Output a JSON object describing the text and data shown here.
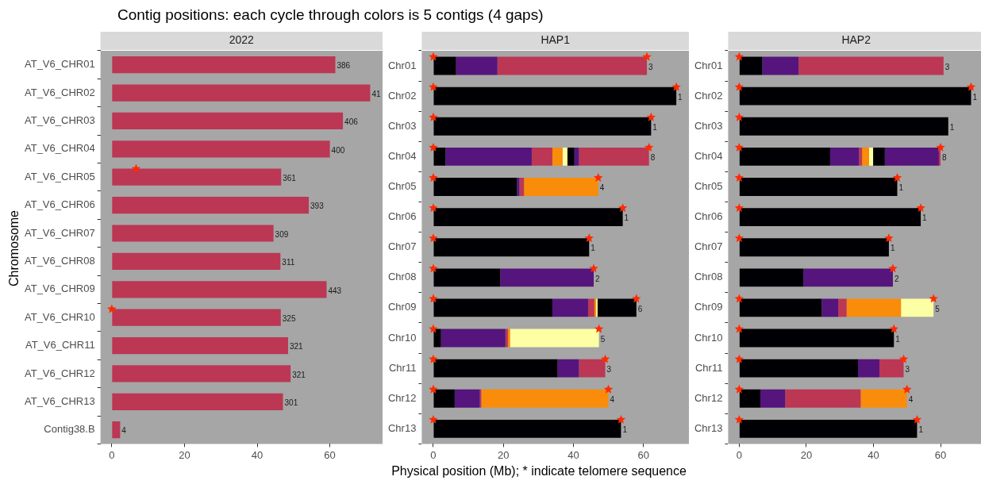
{
  "chart_data": [
    {
      "type": "bar",
      "orientation": "horizontal",
      "title": "Contig positions: each cycle through colors is 5 contigs (4 gaps)",
      "subtitle": "2022",
      "ylabel": "Chromosome",
      "categories": [
        "AT_V6_CHR01",
        "AT_V6_CHR02",
        "AT_V6_CHR03",
        "AT_V6_CHR04",
        "AT_V6_CHR05",
        "AT_V6_CHR06",
        "AT_V6_CHR07",
        "AT_V6_CHR08",
        "AT_V6_CHR09",
        "AT_V6_CHR10",
        "AT_V6_CHR11",
        "AT_V6_CHR12",
        "AT_V6_CHR13",
        "Contig38.B"
      ],
      "series": [
        {
          "color": "#bb3754",
          "values": [
            61.5,
            71.1,
            63.6,
            60.0,
            46.6,
            54.2,
            44.5,
            46.4,
            59.1,
            46.5,
            48.5,
            49.2,
            47.1,
            2.3
          ]
        },
        {
          "type": "scatter",
          "color": "#ff2a00",
          "marker": "star",
          "x": [
            "AT_V6_CHR05",
            "AT_V6_CHR10"
          ],
          "values": [
            6.7,
            0
          ]
        }
      ],
      "annotations": [
        {
          "text": "386",
          "x": 61.5,
          "y": "AT_V6_CHR01"
        },
        {
          "text": "41",
          "x": 71.1,
          "y": "AT_V6_CHR02"
        },
        {
          "text": "406",
          "x": 63.6,
          "y": "AT_V6_CHR03"
        },
        {
          "text": "400",
          "x": 60.0,
          "y": "AT_V6_CHR04"
        },
        {
          "text": "361",
          "x": 46.6,
          "y": "AT_V6_CHR05"
        },
        {
          "text": "393",
          "x": 54.2,
          "y": "AT_V6_CHR06"
        },
        {
          "text": "309",
          "x": 44.5,
          "y": "AT_V6_CHR07"
        },
        {
          "text": "311",
          "x": 46.4,
          "y": "AT_V6_CHR08"
        },
        {
          "text": "443",
          "x": 59.1,
          "y": "AT_V6_CHR09"
        },
        {
          "text": "325",
          "x": 46.5,
          "y": "AT_V6_CHR10"
        },
        {
          "text": "321",
          "x": 48.5,
          "y": "AT_V6_CHR11"
        },
        {
          "text": "321",
          "x": 49.2,
          "y": "AT_V6_CHR12"
        },
        {
          "text": "301",
          "x": 47.1,
          "y": "AT_V6_CHR13"
        },
        {
          "text": "4",
          "x": 2.3,
          "y": "Contig38.B"
        }
      ],
      "xlim": [
        -3.1,
        74.5
      ],
      "xticks": [
        0,
        20,
        40,
        60
      ]
    },
    {
      "type": "bar",
      "orientation": "horizontal",
      "stacked": true,
      "subtitle": "HAP1",
      "xlabel": "Physical position (Mb); * indicate telomere sequence",
      "categories": [
        "Chr01",
        "Chr02",
        "Chr03",
        "Chr04",
        "Chr05",
        "Chr06",
        "Chr07",
        "Chr08",
        "Chr09",
        "Chr10",
        "Chr11",
        "Chr12",
        "Chr13"
      ],
      "series": [
        {
          "color": "#000004",
          "values": [
            6.5,
            69.4,
            62.2,
            3.5,
            23.9,
            54.1,
            44.5,
            19.1,
            34.0,
            2.2,
            35.5,
            6.1,
            53.6
          ]
        },
        {
          "color": "#56147d",
          "values": [
            11.8,
            null,
            null,
            24.6,
            0.7,
            null,
            null,
            26.7,
            10.2,
            18.4,
            6.1,
            7.2,
            null
          ]
        },
        {
          "color": "#bb3754",
          "values": [
            42.7,
            null,
            null,
            5.9,
            1.3,
            null,
            null,
            null,
            1.8,
            0.7,
            7.5,
            0.4,
            null
          ]
        },
        {
          "color": "#f98c0a",
          "values": [
            null,
            null,
            null,
            2.9,
            21.2,
            null,
            null,
            null,
            0.5,
            0.6,
            null,
            36.3,
            null
          ]
        },
        {
          "color": "#fcffa4",
          "values": [
            null,
            null,
            null,
            1.4,
            null,
            null,
            null,
            null,
            0.4,
            25.4,
            null,
            null,
            null
          ]
        },
        {
          "color": "#000004",
          "values": [
            null,
            null,
            null,
            2.0,
            null,
            null,
            null,
            null,
            11.1,
            null,
            null,
            null,
            null
          ]
        },
        {
          "color": "#56147d",
          "values": [
            null,
            null,
            null,
            1.3,
            null,
            null,
            null,
            null,
            null,
            null,
            null,
            null,
            null
          ]
        },
        {
          "color": "#bb3754",
          "values": [
            null,
            null,
            null,
            20.0,
            null,
            null,
            null,
            null,
            null,
            null,
            null,
            null,
            null
          ]
        },
        {
          "type": "scatter",
          "color": "#ff2a00",
          "marker": "star",
          "x": [
            "Chr01",
            "Chr02",
            "Chr03",
            "Chr04",
            "Chr05",
            "Chr06",
            "Chr07",
            "Chr08",
            "Chr09",
            "Chr10",
            "Chr11",
            "Chr12",
            "Chr13",
            "Chr01",
            "Chr02",
            "Chr03",
            "Chr04",
            "Chr05",
            "Chr06",
            "Chr07",
            "Chr08",
            "Chr09",
            "Chr10",
            "Chr11",
            "Chr12",
            "Chr13"
          ],
          "values": [
            0,
            0,
            0,
            0,
            0,
            0,
            0,
            0,
            0,
            0,
            0,
            0,
            0,
            61.0,
            69.4,
            62.2,
            61.6,
            47.1,
            54.1,
            44.5,
            45.8,
            58.0,
            47.3,
            49.1,
            50.0,
            53.6
          ]
        }
      ],
      "annotations": [
        {
          "text": "3",
          "x": 61.0,
          "y": "Chr01"
        },
        {
          "text": "1",
          "x": 69.4,
          "y": "Chr02"
        },
        {
          "text": "1",
          "x": 62.2,
          "y": "Chr03"
        },
        {
          "text": "8",
          "x": 61.6,
          "y": "Chr04"
        },
        {
          "text": "4",
          "x": 47.1,
          "y": "Chr05"
        },
        {
          "text": "1",
          "x": 54.1,
          "y": "Chr06"
        },
        {
          "text": "1",
          "x": 44.5,
          "y": "Chr07"
        },
        {
          "text": "2",
          "x": 45.8,
          "y": "Chr08"
        },
        {
          "text": "6",
          "x": 58.0,
          "y": "Chr09"
        },
        {
          "text": "5",
          "x": 47.3,
          "y": "Chr10"
        },
        {
          "text": "3",
          "x": 49.1,
          "y": "Chr11"
        },
        {
          "text": "4",
          "x": 50.0,
          "y": "Chr12"
        },
        {
          "text": "1",
          "x": 53.6,
          "y": "Chr13"
        }
      ],
      "xlim": [
        -3.3,
        73
      ],
      "xticks": [
        0,
        20,
        40,
        60
      ]
    },
    {
      "type": "bar",
      "orientation": "horizontal",
      "stacked": true,
      "subtitle": "HAP2",
      "categories": [
        "Chr01",
        "Chr02",
        "Chr03",
        "Chr04",
        "Chr05",
        "Chr06",
        "Chr07",
        "Chr08",
        "Chr09",
        "Chr10",
        "Chr11",
        "Chr12",
        "Chr13"
      ],
      "series": [
        {
          "color": "#000004",
          "values": [
            6.9,
            69.1,
            62.3,
            27.1,
            47.1,
            54.1,
            44.6,
            19.1,
            24.6,
            46.1,
            35.4,
            6.3,
            53.0
          ]
        },
        {
          "color": "#56147d",
          "values": [
            10.8,
            null,
            null,
            8.6,
            null,
            null,
            null,
            26.7,
            4.9,
            null,
            6.4,
            7.4,
            null
          ]
        },
        {
          "color": "#bb3754",
          "values": [
            43.2,
            null,
            null,
            0.9,
            null,
            null,
            null,
            null,
            2.5,
            null,
            7.2,
            22.5,
            null
          ]
        },
        {
          "color": "#f98c0a",
          "values": [
            null,
            null,
            null,
            2.1,
            null,
            null,
            null,
            null,
            16.2,
            null,
            null,
            13.8,
            null
          ]
        },
        {
          "color": "#fcffa4",
          "values": [
            null,
            null,
            null,
            1.2,
            null,
            null,
            null,
            null,
            9.7,
            null,
            null,
            null,
            null
          ]
        },
        {
          "color": "#000004",
          "values": [
            null,
            null,
            null,
            3.5,
            null,
            null,
            null,
            null,
            null,
            null,
            null,
            null,
            null
          ]
        },
        {
          "color": "#56147d",
          "values": [
            null,
            null,
            null,
            16.1,
            null,
            null,
            null,
            null,
            null,
            null,
            null,
            null,
            null
          ]
        },
        {
          "color": "#bb3754",
          "values": [
            null,
            null,
            null,
            0.5,
            null,
            null,
            null,
            null,
            null,
            null,
            null,
            null,
            null
          ]
        },
        {
          "type": "scatter",
          "color": "#ff2a00",
          "marker": "star",
          "x": [
            "Chr01",
            "Chr02",
            "Chr03",
            "Chr04",
            "Chr05",
            "Chr06",
            "Chr07",
            "Chr09",
            "Chr10",
            "Chr11",
            "Chr12",
            "Chr13",
            "Chr02",
            "Chr04",
            "Chr05",
            "Chr06",
            "Chr07",
            "Chr08",
            "Chr09",
            "Chr10",
            "Chr11",
            "Chr12",
            "Chr13"
          ],
          "values": [
            0,
            0,
            0,
            0,
            0,
            0,
            0,
            0,
            0,
            0,
            0,
            0,
            69.1,
            60.0,
            47.1,
            54.1,
            44.6,
            45.8,
            57.9,
            46.1,
            49.0,
            50.0,
            53.0
          ]
        }
      ],
      "annotations": [
        {
          "text": "3",
          "x": 60.9,
          "y": "Chr01"
        },
        {
          "text": "1",
          "x": 69.1,
          "y": "Chr02"
        },
        {
          "text": "1",
          "x": 62.3,
          "y": "Chr03"
        },
        {
          "text": "8",
          "x": 60.0,
          "y": "Chr04"
        },
        {
          "text": "1",
          "x": 47.1,
          "y": "Chr05"
        },
        {
          "text": "1",
          "x": 54.1,
          "y": "Chr06"
        },
        {
          "text": "1",
          "x": 44.6,
          "y": "Chr07"
        },
        {
          "text": "2",
          "x": 45.8,
          "y": "Chr08"
        },
        {
          "text": "5",
          "x": 57.9,
          "y": "Chr09"
        },
        {
          "text": "1",
          "x": 46.1,
          "y": "Chr10"
        },
        {
          "text": "3",
          "x": 49.0,
          "y": "Chr11"
        },
        {
          "text": "4",
          "x": 50.0,
          "y": "Chr12"
        },
        {
          "text": "1",
          "x": 53.0,
          "y": "Chr13"
        }
      ],
      "xlim": [
        -3.3,
        73
      ],
      "xticks": [
        0,
        20,
        40,
        60
      ]
    }
  ]
}
